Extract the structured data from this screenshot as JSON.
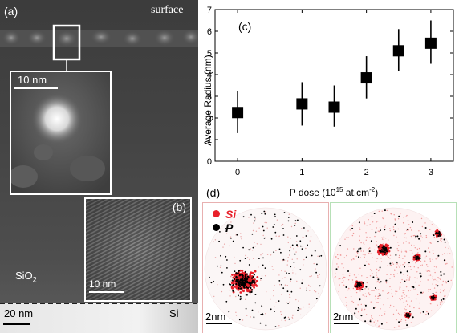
{
  "tem_left": {
    "panel_a_label": "(a)",
    "surface_label": "surface",
    "inset_scale_label": "10 nm",
    "oxide_label_main": "SiO",
    "oxide_label_sub": "2",
    "scale_label": "20 nm",
    "substrate_label": "Si",
    "panel_b_label": "(b)",
    "panel_b_scale_label": "10 nm"
  },
  "chart_data": {
    "type": "scatter",
    "panel_label": "(c)",
    "xlabel_main": "P dose (10",
    "xlabel_sup": "15",
    "xlabel_end": " at.cm",
    "xlabel_sup2": "-2",
    "xlabel_close": ")",
    "ylabel": "Average Radius (nm)",
    "xlim": [
      -0.35,
      3.35
    ],
    "ylim": [
      0,
      7
    ],
    "xticks": [
      0,
      1,
      2,
      3
    ],
    "yticks": [
      0,
      1,
      2,
      3,
      4,
      5,
      6,
      7
    ],
    "points": [
      {
        "x": 0.0,
        "y": 2.25,
        "ylo": 1.3,
        "yhi": 3.25
      },
      {
        "x": 1.0,
        "y": 2.65,
        "ylo": 1.65,
        "yhi": 3.65
      },
      {
        "x": 1.5,
        "y": 2.5,
        "ylo": 1.6,
        "yhi": 3.5
      },
      {
        "x": 2.0,
        "y": 3.85,
        "ylo": 2.9,
        "yhi": 4.85
      },
      {
        "x": 2.5,
        "y": 5.1,
        "ylo": 4.15,
        "yhi": 6.1
      },
      {
        "x": 3.0,
        "y": 5.45,
        "ylo": 4.5,
        "yhi": 6.5
      }
    ],
    "marker_color": "#000000"
  },
  "apt": {
    "panel_label": "(d)",
    "legend_si": "Si",
    "legend_p": "P",
    "si_color": "#e8202a",
    "p_color": "#000000",
    "scale_left": "2nm",
    "scale_right": "2nm"
  }
}
